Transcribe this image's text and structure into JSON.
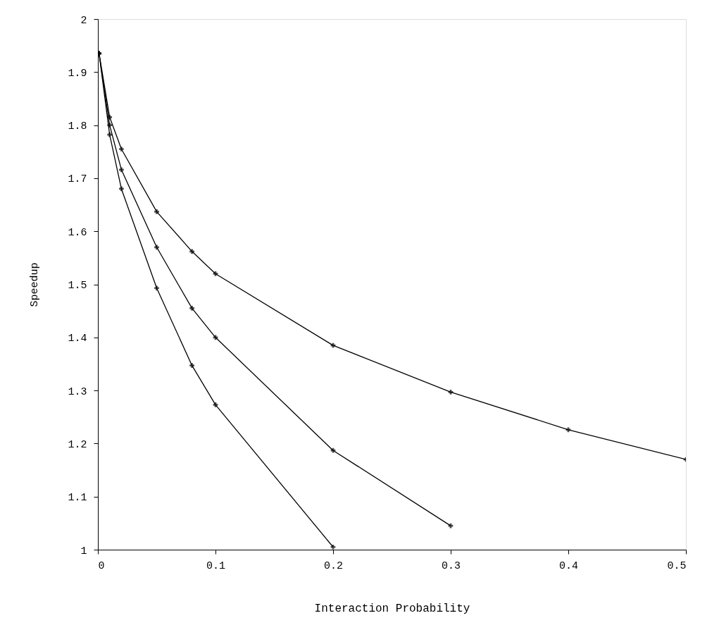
{
  "chart_data": {
    "type": "line",
    "xlabel": "Interaction Probability",
    "ylabel": "Speedup",
    "xlim": [
      0,
      0.5
    ],
    "ylim": [
      1,
      2
    ],
    "xticks": [
      {
        "value": 0,
        "label": "0"
      },
      {
        "value": 0.1,
        "label": "0.1"
      },
      {
        "value": 0.2,
        "label": "0.2"
      },
      {
        "value": 0.3,
        "label": "0.3"
      },
      {
        "value": 0.4,
        "label": "0.4"
      },
      {
        "value": 0.5,
        "label": "0.5"
      }
    ],
    "yticks": [
      1,
      {
        "value": 1.1,
        "label": "1.1"
      },
      {
        "value": 1.2,
        "label": "1.2"
      },
      {
        "value": 1.3,
        "label": "1.3"
      },
      {
        "value": 1.4,
        "label": "1.4"
      },
      {
        "value": 1.5,
        "label": "1.5"
      },
      {
        "value": 1.6,
        "label": "1.6"
      },
      {
        "value": 1.7,
        "label": "1.7"
      },
      {
        "value": 1.8,
        "label": "1.8"
      },
      {
        "value": 1.9,
        "label": "1.9"
      },
      2
    ],
    "grid": false,
    "legend": false,
    "marker": "cross",
    "line_style": "solid",
    "series": [
      {
        "color": "#000000",
        "x": [
          0.001,
          0.01,
          0.02,
          0.05,
          0.08,
          0.1,
          0.2,
          0.3,
          0.4,
          0.5
        ],
        "values": [
          1.935,
          1.815,
          1.755,
          1.637,
          1.562,
          1.52,
          1.385,
          1.297,
          1.226,
          1.17
        ]
      },
      {
        "color": "#000000",
        "x": [
          0.001,
          0.01,
          0.02,
          0.05,
          0.08,
          0.1,
          0.2,
          0.3
        ],
        "values": [
          1.935,
          1.8,
          1.716,
          1.57,
          1.455,
          1.4,
          1.187,
          1.045
        ]
      },
      {
        "color": "#000000",
        "x": [
          0.001,
          0.01,
          0.02,
          0.05,
          0.08,
          0.1,
          0.2
        ],
        "values": [
          1.935,
          1.782,
          1.68,
          1.493,
          1.347,
          1.273,
          1.005
        ]
      }
    ]
  }
}
